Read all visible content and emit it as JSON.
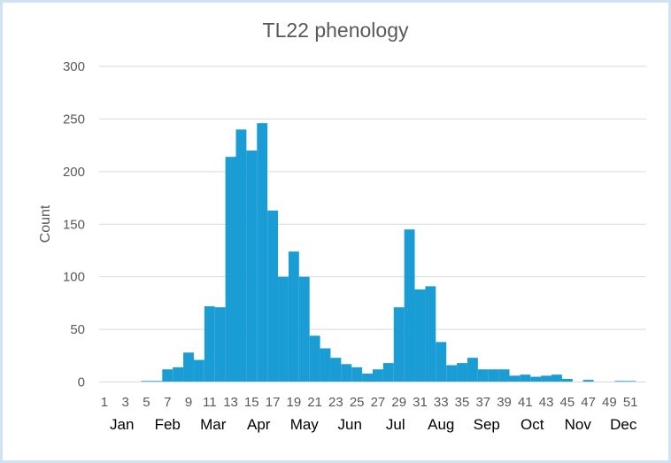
{
  "chart_data": {
    "type": "bar",
    "title": "TL22 phenology",
    "xlabel": "",
    "ylabel": "Count",
    "ylim": [
      0,
      300
    ],
    "y_ticks": [
      "0",
      "50",
      "100",
      "150",
      "200",
      "250",
      "300"
    ],
    "grid": true,
    "legend": "none",
    "bar_color": "#1a9cd4",
    "categories": [
      1,
      2,
      3,
      4,
      5,
      6,
      7,
      8,
      9,
      10,
      11,
      12,
      13,
      14,
      15,
      16,
      17,
      18,
      19,
      20,
      21,
      22,
      23,
      24,
      25,
      26,
      27,
      28,
      29,
      30,
      31,
      32,
      33,
      34,
      35,
      36,
      37,
      38,
      39,
      40,
      41,
      42,
      43,
      44,
      45,
      46,
      47,
      48,
      49,
      50,
      51,
      52
    ],
    "x_tick_labels": [
      "1",
      "3",
      "5",
      "7",
      "9",
      "11",
      "13",
      "15",
      "17",
      "19",
      "21",
      "23",
      "25",
      "27",
      "29",
      "31",
      "33",
      "35",
      "37",
      "39",
      "41",
      "43",
      "45",
      "47",
      "49",
      "51"
    ],
    "month_labels": [
      "Jan",
      "Feb",
      "Mar",
      "Apr",
      "May",
      "Jun",
      "Jul",
      "Aug",
      "Sep",
      "Oct",
      "Nov",
      "Dec"
    ],
    "values": [
      0,
      0,
      0,
      0,
      1,
      1,
      12,
      14,
      28,
      21,
      72,
      71,
      214,
      240,
      220,
      246,
      163,
      100,
      124,
      100,
      44,
      32,
      23,
      17,
      14,
      8,
      12,
      18,
      71,
      145,
      88,
      91,
      38,
      16,
      18,
      23,
      12,
      12,
      12,
      6,
      7,
      5,
      6,
      7,
      3,
      0,
      2,
      0,
      0,
      1,
      1,
      0
    ]
  }
}
